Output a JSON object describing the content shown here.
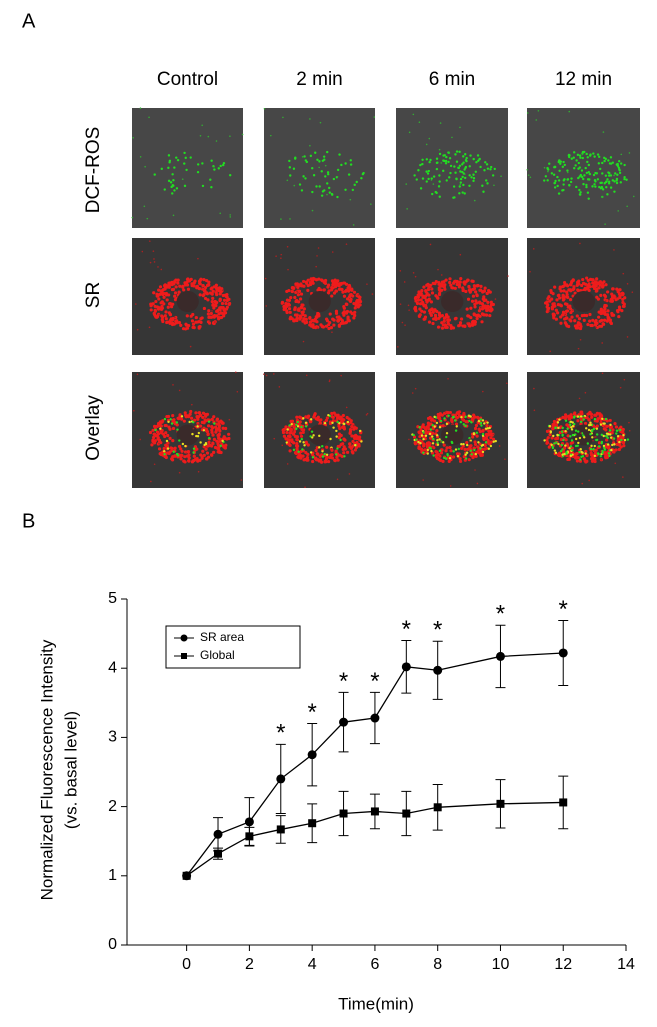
{
  "panel_a": {
    "label": "A",
    "columns": [
      "Control",
      "2 min",
      "6 min",
      "12 min"
    ],
    "rows": [
      "DCF-ROS",
      "SR",
      "Overlay"
    ]
  },
  "panel_b": {
    "label": "B"
  },
  "chart_data": {
    "type": "line",
    "y_label": [
      "Normalized Fluorescence Intensity",
      "(vs. basal level)"
    ],
    "x_label": "Time(min)",
    "x": [
      0,
      1,
      2,
      3,
      4,
      5,
      6,
      7,
      8,
      10,
      12
    ],
    "series": [
      {
        "name": "SR area",
        "color": "#000000",
        "marker": "circle",
        "values": [
          1,
          1.6,
          1.78,
          2.4,
          2.75,
          3.22,
          3.28,
          4.02,
          3.97,
          4.17,
          4.22
        ],
        "errors": [
          0,
          0.24,
          0.35,
          0.5,
          0.45,
          0.43,
          0.37,
          0.38,
          0.42,
          0.45,
          0.47
        ]
      },
      {
        "name": "Global",
        "color": "#000000",
        "marker": "square",
        "values": [
          1,
          1.32,
          1.57,
          1.67,
          1.76,
          1.9,
          1.93,
          1.9,
          1.99,
          2.04,
          2.06
        ],
        "errors": [
          0,
          0.08,
          0.13,
          0.2,
          0.28,
          0.32,
          0.25,
          0.32,
          0.33,
          0.35,
          0.38
        ]
      }
    ],
    "annotations": [
      {
        "x": 3,
        "text": "*"
      },
      {
        "x": 4,
        "text": "*"
      },
      {
        "x": 5,
        "text": "*"
      },
      {
        "x": 6,
        "text": "*"
      },
      {
        "x": 7,
        "text": "*"
      },
      {
        "x": 8,
        "text": "*"
      },
      {
        "x": 10,
        "text": "*"
      },
      {
        "x": 12,
        "text": "*"
      }
    ],
    "xlim": [
      -1.9,
      14
    ],
    "xticks": [
      0,
      2,
      4,
      6,
      8,
      10,
      12,
      14
    ],
    "ylim": [
      0,
      5
    ],
    "yticks": [
      0,
      1,
      2,
      3,
      4,
      5
    ],
    "legend": "upper left"
  }
}
